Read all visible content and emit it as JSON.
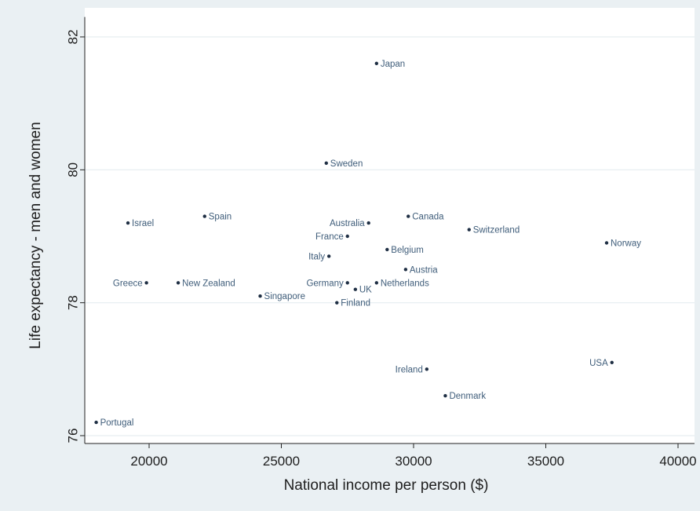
{
  "chart_data": {
    "type": "scatter",
    "xlabel": "National income per person ($)",
    "ylabel": "Life expectancy - men and women",
    "xlim": [
      17600,
      40000
    ],
    "ylim": [
      75.9,
      82.3
    ],
    "xticks": [
      20000,
      25000,
      30000,
      35000,
      40000
    ],
    "yticks": [
      76,
      78,
      80,
      82
    ],
    "grid": "horizontal",
    "legend": "none",
    "points": [
      {
        "label": "Japan",
        "x": 28600,
        "y": 81.6,
        "side": "right"
      },
      {
        "label": "Sweden",
        "x": 26700,
        "y": 80.1,
        "side": "right"
      },
      {
        "label": "Israel",
        "x": 19200,
        "y": 79.2,
        "side": "right"
      },
      {
        "label": "Spain",
        "x": 22100,
        "y": 79.3,
        "side": "right"
      },
      {
        "label": "Australia",
        "x": 28300,
        "y": 79.2,
        "side": "left"
      },
      {
        "label": "Canada",
        "x": 29800,
        "y": 79.3,
        "side": "right"
      },
      {
        "label": "France",
        "x": 27500,
        "y": 79.0,
        "side": "left"
      },
      {
        "label": "Switzerland",
        "x": 32100,
        "y": 79.1,
        "side": "right"
      },
      {
        "label": "Norway",
        "x": 37300,
        "y": 78.9,
        "side": "right"
      },
      {
        "label": "Belgium",
        "x": 29000,
        "y": 78.8,
        "side": "right"
      },
      {
        "label": "Italy",
        "x": 26800,
        "y": 78.7,
        "side": "left"
      },
      {
        "label": "Austria",
        "x": 29700,
        "y": 78.5,
        "side": "right"
      },
      {
        "label": "Greece",
        "x": 19900,
        "y": 78.3,
        "side": "left"
      },
      {
        "label": "New Zealand",
        "x": 21100,
        "y": 78.3,
        "side": "right"
      },
      {
        "label": "Germany",
        "x": 27500,
        "y": 78.3,
        "side": "left"
      },
      {
        "label": "UK",
        "x": 27800,
        "y": 78.2,
        "side": "right"
      },
      {
        "label": "Netherlands",
        "x": 28600,
        "y": 78.3,
        "side": "right"
      },
      {
        "label": "Singapore",
        "x": 24200,
        "y": 78.1,
        "side": "right"
      },
      {
        "label": "Finland",
        "x": 27100,
        "y": 78.0,
        "side": "right"
      },
      {
        "label": "Ireland",
        "x": 30500,
        "y": 77.0,
        "side": "left"
      },
      {
        "label": "USA",
        "x": 37500,
        "y": 77.1,
        "side": "left"
      },
      {
        "label": "Denmark",
        "x": 31200,
        "y": 76.6,
        "side": "right"
      },
      {
        "label": "Portugal",
        "x": 18000,
        "y": 76.2,
        "side": "right"
      }
    ],
    "colors": {
      "background": "#eaf0f3",
      "plot_area": "#ffffff",
      "point": "#1f2f44",
      "label": "#3f5d7a"
    }
  }
}
